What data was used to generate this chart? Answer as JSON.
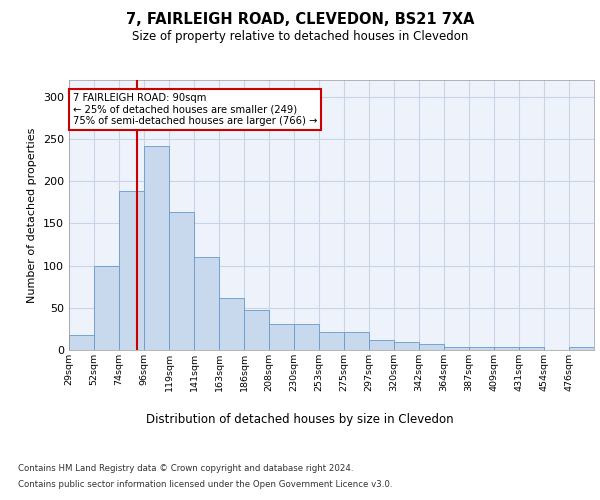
{
  "title": "7, FAIRLEIGH ROAD, CLEVEDON, BS21 7XA",
  "subtitle": "Size of property relative to detached houses in Clevedon",
  "xlabel": "Distribution of detached houses by size in Clevedon",
  "ylabel": "Number of detached properties",
  "footnote1": "Contains HM Land Registry data © Crown copyright and database right 2024.",
  "footnote2": "Contains public sector information licensed under the Open Government Licence v3.0.",
  "annotation_title": "7 FAIRLEIGH ROAD: 90sqm",
  "annotation_line1": "← 25% of detached houses are smaller (249)",
  "annotation_line2": "75% of semi-detached houses are larger (766) →",
  "property_size_bin": 2.7,
  "bar_color": "#c8d9ee",
  "bar_edge_color": "#6699cc",
  "vline_color": "#cc0000",
  "annotation_box_color": "#cc0000",
  "grid_color": "#c8d4e8",
  "bg_color": "#eef2fa",
  "categories": [
    "29sqm",
    "52sqm",
    "74sqm",
    "96sqm",
    "119sqm",
    "141sqm",
    "163sqm",
    "186sqm",
    "208sqm",
    "230sqm",
    "253sqm",
    "275sqm",
    "297sqm",
    "320sqm",
    "342sqm",
    "364sqm",
    "387sqm",
    "409sqm",
    "431sqm",
    "454sqm",
    "476sqm"
  ],
  "values": [
    18,
    99,
    189,
    242,
    163,
    110,
    62,
    48,
    31,
    31,
    21,
    21,
    12,
    10,
    7,
    4,
    4,
    4,
    4,
    0,
    3
  ],
  "ylim": [
    0,
    320
  ],
  "yticks": [
    0,
    50,
    100,
    150,
    200,
    250,
    300
  ]
}
